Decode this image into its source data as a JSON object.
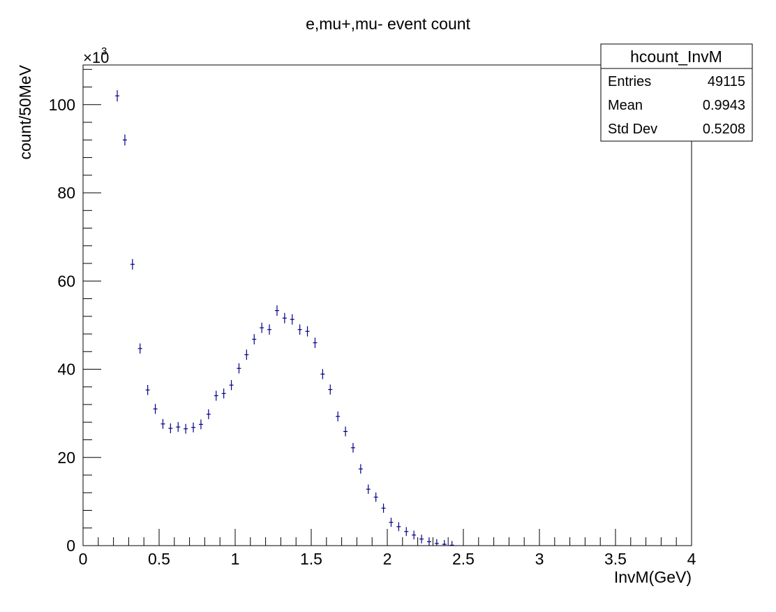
{
  "chart_data": {
    "type": "scatter",
    "title": "e,mu+,mu- event count",
    "xlabel": "InvM(GeV)",
    "ylabel": "count/50MeV",
    "y_multiplier_label": "×10",
    "y_multiplier_exponent": "3",
    "xlim": [
      0,
      4
    ],
    "ylim": [
      0,
      109
    ],
    "x_bin_width": 0.05,
    "x_ticks": [
      "0",
      "0.5",
      "1",
      "1.5",
      "2",
      "2.5",
      "3",
      "3.5",
      "4"
    ],
    "y_ticks": [
      "0",
      "20",
      "40",
      "60",
      "80",
      "100"
    ],
    "marker_color": "#000080",
    "series": [
      {
        "x": [
          0.225,
          0.275,
          0.325,
          0.375,
          0.425,
          0.475,
          0.525,
          0.575,
          0.625,
          0.675,
          0.725,
          0.775,
          0.825,
          0.875,
          0.925,
          0.975,
          1.025,
          1.075,
          1.125,
          1.175,
          1.225,
          1.275,
          1.325,
          1.375,
          1.425,
          1.475,
          1.525,
          1.575,
          1.625,
          1.675,
          1.725,
          1.775,
          1.825,
          1.875,
          1.925,
          1.975,
          2.025,
          2.075,
          2.125,
          2.175,
          2.225,
          2.275,
          2.325,
          2.375,
          2.425
        ],
        "y": [
          102.0,
          92.0,
          63.8,
          44.7,
          35.3,
          31.0,
          27.6,
          26.6,
          26.9,
          26.5,
          26.8,
          27.5,
          29.8,
          34.0,
          34.5,
          36.4,
          40.2,
          43.3,
          46.8,
          49.4,
          49.0,
          53.3,
          51.6,
          51.3,
          49.0,
          48.6,
          46.0,
          38.9,
          35.4,
          29.3,
          25.9,
          22.2,
          17.4,
          12.8,
          11.0,
          8.5,
          5.3,
          4.3,
          3.2,
          2.4,
          1.5,
          0.9,
          0.5,
          0.3,
          0.1
        ]
      }
    ]
  },
  "stats_box": {
    "name": "hcount_InvM",
    "rows": [
      {
        "label": "Entries",
        "value": "49115"
      },
      {
        "label": "Mean",
        "value": "0.9943"
      },
      {
        "label": "Std Dev",
        "value": "0.5208"
      }
    ]
  }
}
